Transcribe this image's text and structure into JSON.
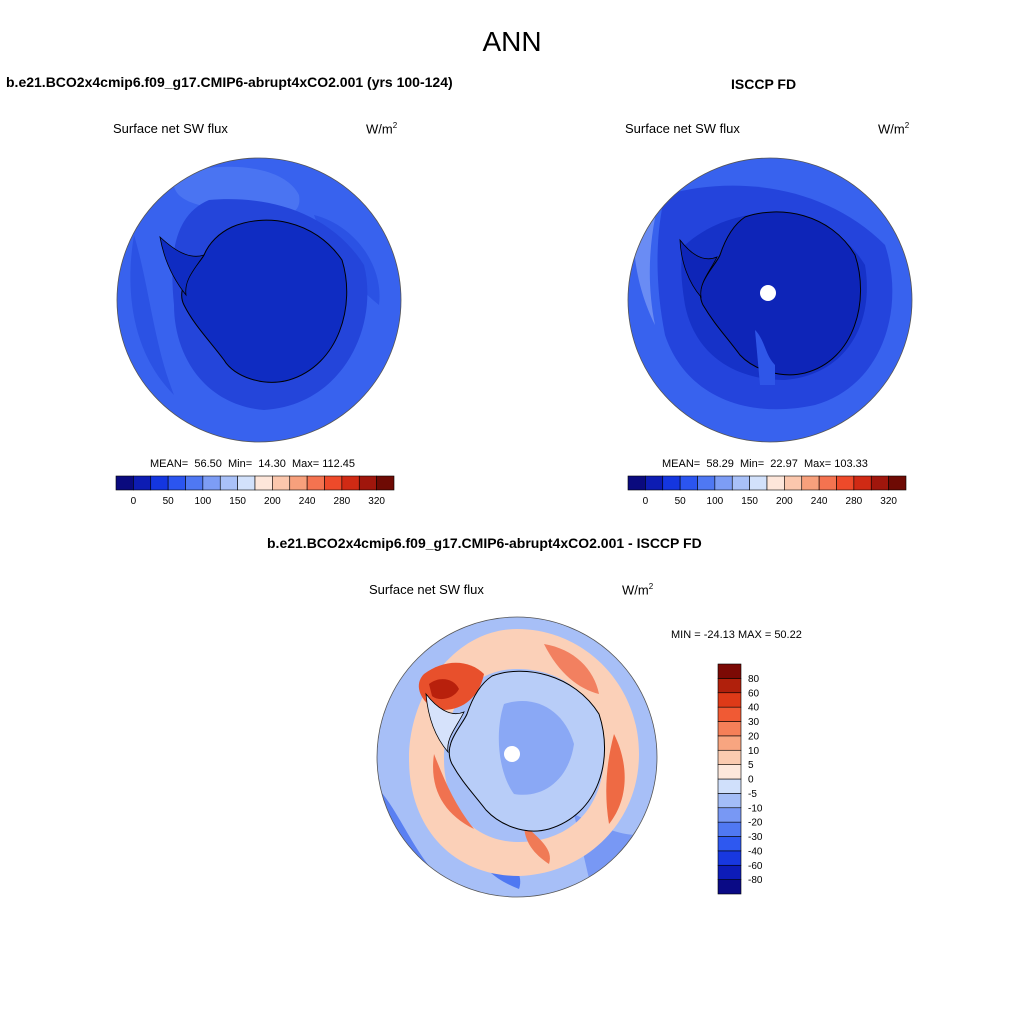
{
  "page": {
    "title": "ANN"
  },
  "panels": [
    {
      "case_title": "b.e21.BCO2x4cmip6.f09_g17.CMIP6-abrupt4xCO2.001 (yrs 100-124)",
      "variable": "Surface net SW flux",
      "units_base": "W/m",
      "units_exp": "2",
      "stats": {
        "mean_label": "MEAN=",
        "mean": "56.50",
        "min_label": "Min=",
        "min": "14.30",
        "max_label": "Max=",
        "max": "112.45"
      }
    },
    {
      "case_title": "ISCCP FD",
      "variable": "Surface net SW flux",
      "units_base": "W/m",
      "units_exp": "2",
      "stats": {
        "mean_label": "MEAN=",
        "mean": "58.29",
        "min_label": "Min=",
        "min": "22.97",
        "max_label": "Max=",
        "max": "103.33"
      }
    },
    {
      "case_title": "b.e21.BCO2x4cmip6.f09_g17.CMIP6-abrupt4xCO2.001 - ISCCP FD",
      "variable": "Surface net SW flux",
      "units_base": "W/m",
      "units_exp": "2",
      "stats_text": "MIN = -24.13 MAX =  50.22"
    }
  ],
  "colorbar_abs": {
    "colors": [
      "#0a0a7e",
      "#0d1cb3",
      "#1436e0",
      "#2b55f0",
      "#4f78f3",
      "#7d9df5",
      "#a9c1f8",
      "#d2e1fb",
      "#fde6da",
      "#fbc7ad",
      "#f7a07c",
      "#f47350",
      "#ee4a2a",
      "#d02a14",
      "#a0160c",
      "#6e0a04"
    ],
    "tick_labels": [
      "0",
      "50",
      "100",
      "150",
      "200",
      "240",
      "280",
      "320"
    ],
    "tick_positions": [
      1,
      3,
      5,
      7,
      9,
      11,
      13,
      15
    ]
  },
  "colorbar_diff": {
    "colors_bottom_to_top": [
      "#0a0a85",
      "#0d1cb8",
      "#1838e0",
      "#2e58f0",
      "#5078f2",
      "#7898f4",
      "#a3bdf7",
      "#d0e0fb",
      "#fde8dc",
      "#fbcbb0",
      "#f8a580",
      "#f57f58",
      "#f05a34",
      "#de3a18",
      "#b0200c",
      "#7c0a05"
    ],
    "tick_labels_bottom_to_top": [
      "-80",
      "-60",
      "-40",
      "-30",
      "-20",
      "-10",
      "-5",
      "0",
      "5",
      "10",
      "20",
      "30",
      "40",
      "60",
      "80"
    ]
  },
  "colors": {
    "ocean_abs": "#3460ec",
    "ice_abs": "#1131c8",
    "deep_ice": "#0d22b0",
    "diff_neutral": "#c6d8f8",
    "diff_red": "#f07650"
  }
}
